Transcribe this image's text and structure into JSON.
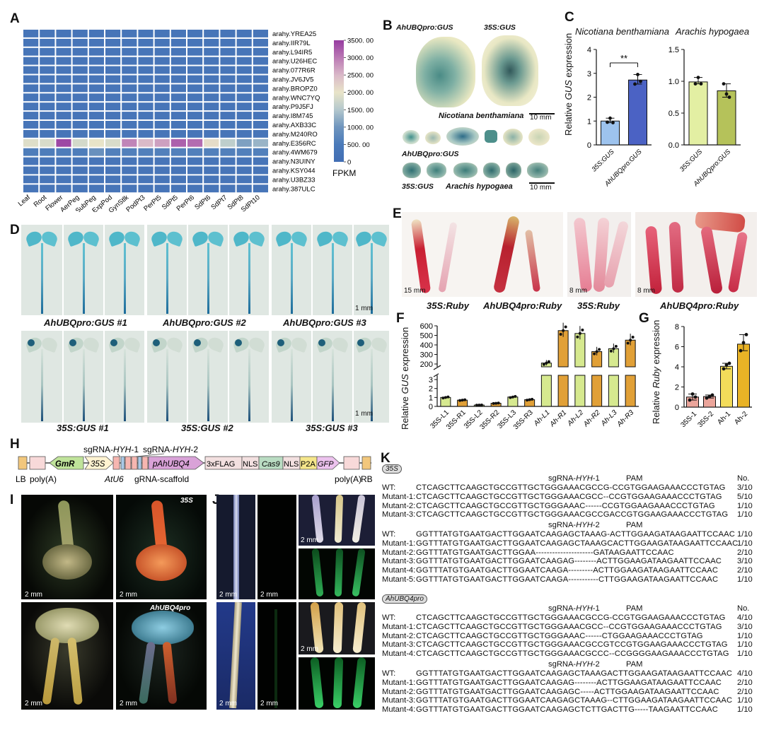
{
  "panels": {
    "A": "A",
    "B": "B",
    "C": "C",
    "D": "D",
    "E": "E",
    "F": "F",
    "G": "G",
    "H": "H",
    "I": "I",
    "J": "J",
    "K": "K"
  },
  "heatmap": {
    "genes": [
      "arahy.YREA25",
      "arahy.IIR79L",
      "arahy.L94IR5",
      "arahy.U26HEC",
      "arahy.077R6R",
      "arahy.JV6JV5",
      "arahy.BROPZ0",
      "arahy.WNC7YQ",
      "arahy.P9J5FJ",
      "arahy.I8M745",
      "arahy.AXB33C",
      "arahy.M240RO",
      "arahy.E356RC",
      "arahy.4WM679",
      "arahy.N3UINY",
      "arahy.KSY044",
      "arahy.U3BZ33",
      "arahy.387ULC"
    ],
    "tissues": [
      "Leaf",
      "Root",
      "Flower",
      "AerPeg",
      "SubPeg",
      "ExpPod",
      "GynStlk",
      "PodPt3",
      "PerPt5",
      "SdPt5",
      "PerPt6",
      "SdPt6",
      "SdPt7",
      "SdPt8",
      "SdPt10"
    ],
    "high_row_index": 12,
    "high_row_values": [
      1900,
      1850,
      3400,
      1800,
      2000,
      1850,
      2900,
      2500,
      2700,
      3200,
      3100,
      2100,
      1600,
      1100,
      1300
    ],
    "sub_row_index": 13,
    "sub_row_values": [
      550,
      550,
      550,
      550,
      900,
      600,
      600,
      600,
      600,
      600,
      600,
      600,
      600,
      600,
      600
    ],
    "base_value": 300,
    "colorbar_ticks": [
      "3500. 00",
      "3000. 00",
      "2500. 00",
      "2000. 00",
      "1500. 00",
      "1000. 00",
      "500. 00",
      "0"
    ],
    "colorbar_label": "FPKM"
  },
  "panelB": {
    "leaf1": "AhUBQpro:GUS",
    "leaf2": "35S:GUS",
    "species1": "Nicotiana benthamiana",
    "scale1": "10 mm",
    "row1": "AhUBQpro:GUS",
    "row2": "35S:GUS",
    "species2": "Arachis hypogaea",
    "scale2": "10 mm"
  },
  "chart_data": [
    {
      "type": "bar",
      "title": "Nicotiana benthamiana",
      "ylabel": "Relative GUS expression",
      "categories": [
        "35S:GUS",
        "AhUBQpro:GUS"
      ],
      "values": [
        1.0,
        2.72
      ],
      "points": [
        [
          0.95,
          1.12,
          0.93
        ],
        [
          2.55,
          2.95,
          2.66
        ]
      ],
      "ylim": [
        0,
        4
      ],
      "yticks": [
        "0",
        "1",
        "2",
        "3",
        "4"
      ],
      "annotation": "**",
      "colors": [
        "#9dc3ee",
        "#4b62c4"
      ]
    },
    {
      "type": "bar",
      "title": "Arachis hypogaea",
      "categories": [
        "35S:GUS",
        "AhUBQpro:GUS"
      ],
      "values": [
        0.99,
        0.85
      ],
      "points": [
        [
          0.96,
          1.06,
          0.96
        ],
        [
          0.96,
          0.8,
          0.75
        ]
      ],
      "ylim": [
        0,
        1.5
      ],
      "yticks": [
        "0.0",
        "0.5",
        "1.0",
        "1.5"
      ],
      "colors": [
        "#e3efa3",
        "#b5c25a"
      ]
    },
    {
      "type": "bar",
      "ylabel": "Relative GUS expression",
      "categories": [
        "35S-L1",
        "35S-R1",
        "35S-L2",
        "35S-R2",
        "35S-L3",
        "35S-R3",
        "Ah-L1",
        "Ah-R1",
        "Ah-L2",
        "Ah-R2",
        "Ah-L3",
        "Ah-R3"
      ],
      "values": [
        1.0,
        0.7,
        0.15,
        0.35,
        1.05,
        0.75,
        210,
        550,
        520,
        330,
        360,
        450
      ],
      "yticks_lower": [
        "0",
        "1",
        "2",
        "3"
      ],
      "yticks_upper": [
        "200",
        "300",
        "400",
        "500",
        "600"
      ],
      "colors": [
        "#d6e98f",
        "#e1a037"
      ]
    },
    {
      "type": "bar",
      "ylabel": "Relative Ruby expression",
      "categories": [
        "35S-1",
        "35S-2",
        "Ah-1",
        "Ah-2"
      ],
      "values": [
        1.0,
        1.05,
        4.05,
        6.25
      ],
      "points": [
        [
          0.7,
          1.3,
          1.0
        ],
        [
          0.9,
          1.05,
          1.2
        ],
        [
          3.8,
          4.2,
          4.35
        ],
        [
          5.6,
          6.4,
          7.2
        ]
      ],
      "ylim": [
        0,
        8
      ],
      "yticks": [
        "0",
        "2",
        "4",
        "6",
        "8"
      ],
      "colors": [
        "#eba59b",
        "#eba59b",
        "#f3dc5a",
        "#e9b326"
      ]
    }
  ],
  "panelC": {
    "title1": "Nicotiana benthamiana",
    "title2": "Arachis hypogaea",
    "ylabel_pre": "Relative ",
    "ylabel_it": "GUS",
    "ylabel_post": " expression"
  },
  "panelD": {
    "top_labels": [
      "AhUBQpro:GUS #1",
      "AhUBQpro:GUS #2",
      "AhUBQpro:GUS #3"
    ],
    "bottom_labels": [
      "35S:GUS #1",
      "35S:GUS #2",
      "35S:GUS #3"
    ],
    "scale": "1 mm"
  },
  "panelE": {
    "labels": [
      "35S:Ruby",
      "AhUBQ4pro:Ruby",
      "35S:Ruby",
      "AhUBQ4pro:Ruby"
    ],
    "scales": [
      "15 mm",
      "8 mm",
      "8 mm"
    ]
  },
  "panelG": {
    "ylabel_pre": "Relative ",
    "ylabel_it": "Ruby",
    "ylabel_post": " expression"
  },
  "panelH": {
    "sg1": "sgRNA-HYH-1",
    "sg2": "sgRNA-HYH-2",
    "gmr": "GmR",
    "s35": "35S",
    "atu6": "AtU6",
    "scaffold": "gRNA-scaffold",
    "promoter": "pAhUBQ4",
    "flag": "3xFLAG",
    "nls1": "NLS",
    "cas9": "Cas9",
    "nls2": "NLS",
    "p2a": "P2A",
    "gfp": "GFP",
    "lb": "LB",
    "polya1": "poly(A)",
    "polya2": "poly(A)",
    "rb": "RB"
  },
  "panelI": {
    "tag1": "35S",
    "tag2": "AhUBQ4pro",
    "scale": "2 mm"
  },
  "panelJ": {
    "scale": "2 mm"
  },
  "panelK": {
    "tag1": "35S",
    "tag2": "AhUBQ4pro",
    "no_header": "No.",
    "pam": "PAM",
    "sg1": "sgRNA-HYH-1",
    "sg2": "sgRNA-HYH-2",
    "blocks": [
      {
        "rows": [
          [
            "WT:",
            "CTCAGCTTCAAGCTGCCGTTGCTGGGAAACGCCG-CCGTGGAAGAAACCCTGTAG",
            "3/10"
          ],
          [
            "Mutant-1:",
            "CTCAGCTTCAAGCTGCCGTTGCTGGGAAACGCC--CCGTGGAAGAAACCCTGTAG",
            "5/10"
          ],
          [
            "Mutant-2:",
            "CTCAGCTTCAAGCTGCCGTTGCTGGGAAAC------CCGTGGAAGAAACCCTGTAG",
            "1/10"
          ],
          [
            "Mutant-3:",
            "CTCAGCTTCAAGCTGCCGTTGCTGGGAAACGCCGACCGTGGAAGAAACCCTGTAG",
            "1/10"
          ]
        ]
      },
      {
        "rows": [
          [
            "WT:",
            "GGTTTATGTGAATGACTTGGAATCAAGAGCTAAAG-ACTTGGAAGATAAGAATTCCAAC",
            "1/10"
          ],
          [
            "Mutant-1:",
            "GGTTTATGTGAATGACTTGGAATCAAGAGCTAAAGCACTTGGAAGATAAGAATTCCAAC",
            "1/10"
          ],
          [
            "Mutant-2:",
            "GGTTTATGTGAATGACTTGGAA---------------------GATAAGAATTCCAAC",
            "2/10"
          ],
          [
            "Mutant-3:",
            "GGTTTATGTGAATGACTTGGAATCAAGAG--------ACTTGGAAGATAAGAATTCCAAC",
            "3/10"
          ],
          [
            "Mutant-4:",
            "GGTTTATGTGAATGACTTGGAATCAAGA---------ACTTGGAAGATAAGAATTCCAAC",
            "2/10"
          ],
          [
            "Mutant-5:",
            "GGTTTATGTGAATGACTTGGAATCAAGA-----------CTTGGAAGATAAGAATTCCAAC",
            "1/10"
          ]
        ]
      },
      {
        "rows": [
          [
            "WT:",
            "CTCAGCTTCAAGCTGCCGTTGCTGGGAAACGCCG-CCGTGGAAGAAACCCTGTAG",
            "4/10"
          ],
          [
            "Mutant-1:",
            "CTCAGCTTCAAGCTGCCGTTGCTGGGAAACGCC--CCGTGGAAGAAACCCTGTAG",
            "3/10"
          ],
          [
            "Mutant-2:",
            "CTCAGCTTCAAGCTGCCGTTGCTGGGAAAC------CTGGAAGAAACCCTGTAG",
            "1/10"
          ],
          [
            "Mutant-3:",
            "CTCAGCTTCAAGCTGCCGTTGCTGGGAAACGCCGTCCGTGGAAGAAACCCTGTAG",
            "1/10"
          ],
          [
            "Mutant-4:",
            "CTCAGCTTCAAGCTGCCGTTGCTGGGAAACGCCC--CCGGGGAAGAAACCCTGTAG",
            "1/10"
          ]
        ]
      },
      {
        "rows": [
          [
            "WT:",
            "GGTTTATGTGAATGACTTGGAATCAAGAGCTAAAGACTTGGAAGATAAGAATTCCAAC",
            "4/10"
          ],
          [
            "Mutant-1:",
            "GGTTTATGTGAATGACTTGGAATCAAGAG--------ACTTGGAAGATAAGAATTCCAAC",
            "2/10"
          ],
          [
            "Mutant-2:",
            "GGTTTATGTGAATGACTTGGAATCAAGAGC-----ACTTGGAAGATAAGAATTCCAAC",
            "2/10"
          ],
          [
            "Mutant-3:",
            "GGTTTATGTGAATGACTTGGAATCAAGAGCTAAAG--CTTGGAAGATAAGAATTCCAAC",
            "1/10"
          ],
          [
            "Mutant-4:",
            "GGTTTATGTGAATGACTTGGAATCAAGAGCTCTTGACTTG-----TAAGAATTCCAAC",
            "1/10"
          ]
        ]
      }
    ]
  }
}
